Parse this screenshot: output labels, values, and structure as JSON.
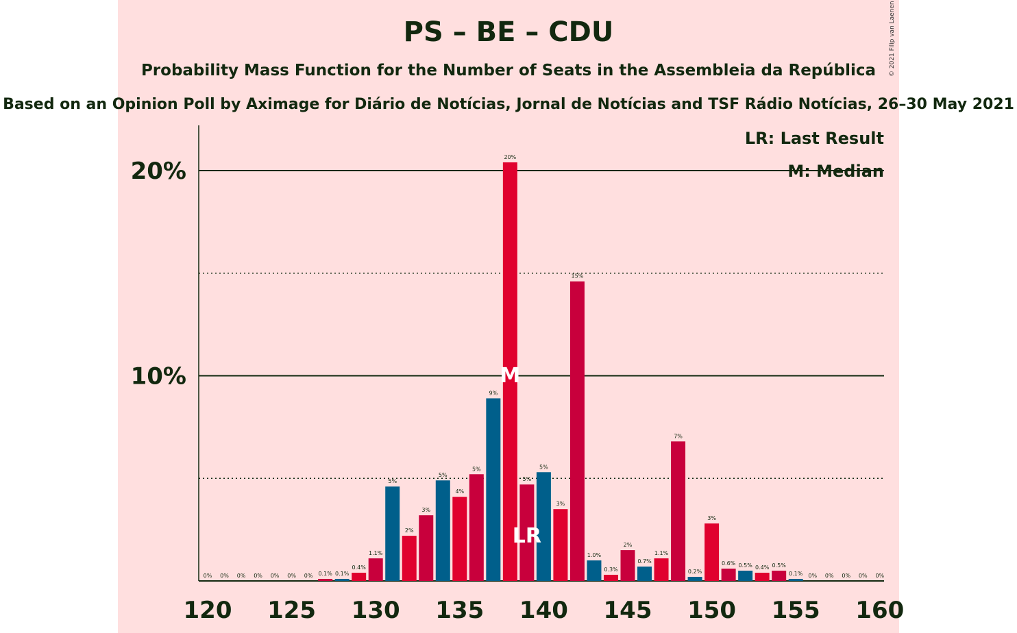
{
  "title": "PS – BE – CDU",
  "subtitle": "Probability Mass Function for the Number of Seats in the Assembleia da República",
  "source": "Based on an Opinion Poll by Aximage for Diário de Notícias, Jornal de Notícias and TSF Rádio Notícias, 26–30 May 2021",
  "copyright": "© 2021 Filip van Laenen",
  "chart_data": {
    "type": "bar",
    "x": [
      120,
      121,
      122,
      123,
      124,
      125,
      126,
      127,
      128,
      129,
      130,
      131,
      132,
      133,
      134,
      135,
      136,
      137,
      138,
      139,
      140,
      141,
      142,
      143,
      144,
      145,
      146,
      147,
      148,
      149,
      150,
      151,
      152,
      153,
      154,
      155,
      156,
      157,
      158,
      159,
      160
    ],
    "values": [
      0,
      0,
      0,
      0,
      0,
      0,
      0,
      0.1,
      0.1,
      0.4,
      1.1,
      4.6,
      2.2,
      3.2,
      4.9,
      4.1,
      5.2,
      8.9,
      20.4,
      4.7,
      5.3,
      3.5,
      14.6,
      1.0,
      0.3,
      1.5,
      0.7,
      1.1,
      6.8,
      0.2,
      2.8,
      0.6,
      0.5,
      0.4,
      0.5,
      0.1,
      0,
      0,
      0,
      0,
      0
    ],
    "labels": [
      "0%",
      "0%",
      "0%",
      "0%",
      "0%",
      "0%",
      "0%",
      "0.1%",
      "0.1%",
      "0.4%",
      "1.1%",
      "5%",
      "2%",
      "3%",
      "5%",
      "4%",
      "5%",
      "9%",
      "20%",
      "5%",
      "5%",
      "3%",
      "15%",
      "1.0%",
      "0.3%",
      "2%",
      "0.7%",
      "1.1%",
      "7%",
      "0.2%",
      "3%",
      "0.6%",
      "0.5%",
      "0.4%",
      "0.5%",
      "0.1%",
      "0%",
      "0%",
      "0%",
      "0%",
      "0%"
    ],
    "colors": [
      "#e0012e",
      "#c8003c",
      "#005f8b"
    ],
    "xlim": [
      120,
      160
    ],
    "ylim": [
      0,
      22
    ],
    "xticks": [
      120,
      125,
      130,
      135,
      140,
      145,
      150,
      155,
      160
    ],
    "yticks_solid": [
      {
        "value": 10,
        "label": "10%"
      },
      {
        "value": 20,
        "label": "20%"
      }
    ],
    "yticks_dotted": [
      5,
      15
    ],
    "median": {
      "x": 138,
      "label": "M"
    },
    "last_result": {
      "x": 139,
      "label": "LR"
    },
    "legend": {
      "placement": "top-right",
      "items": [
        "LR: Last Result",
        "M: Median"
      ]
    }
  }
}
